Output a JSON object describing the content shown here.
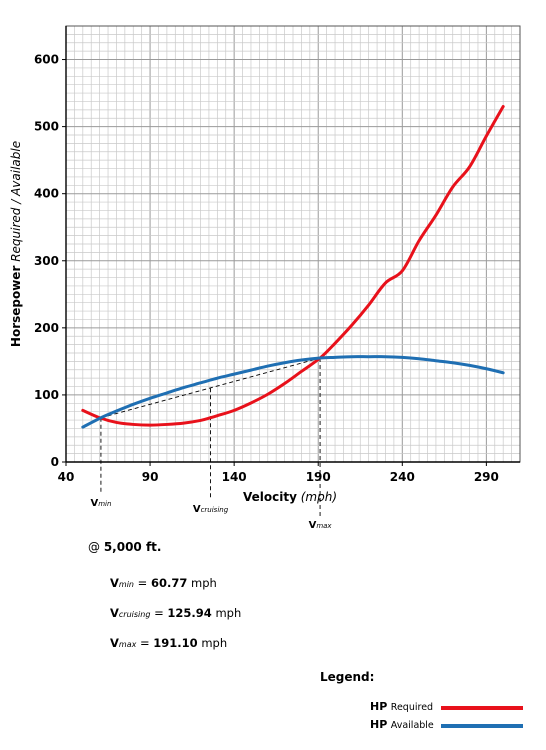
{
  "chart_data": {
    "type": "line",
    "title": "",
    "xlabel_main": "Velocity",
    "xlabel_unit": "(mph)",
    "ylabel_main": "Horsepower",
    "ylabel_sub": "Required / Available",
    "xlim": [
      40,
      310
    ],
    "ylim": [
      0,
      650
    ],
    "x_ticks": [
      40,
      90,
      140,
      190,
      240,
      290
    ],
    "y_ticks": [
      0,
      100,
      200,
      300,
      400,
      500,
      600
    ],
    "x_minor_step": 5,
    "y_minor_step": 12.5,
    "grid": true,
    "series": [
      {
        "name": "HP Required",
        "color": "#e8111b",
        "x": [
          50,
          60,
          70,
          80,
          90,
          100,
          110,
          120,
          125.94,
          130,
          140,
          150,
          160,
          170,
          180,
          191.1,
          200,
          210,
          220,
          230,
          240,
          250,
          260,
          270,
          280,
          290,
          300
        ],
        "y": [
          77,
          66,
          59,
          56,
          55,
          56,
          58,
          62,
          66,
          69,
          77,
          88,
          101,
          117,
          135,
          155,
          177,
          204,
          234,
          267,
          285,
          330,
          368,
          410,
          440,
          486,
          530
        ]
      },
      {
        "name": "HP Available",
        "color": "#1f6fb3",
        "x": [
          50,
          60.77,
          70,
          80,
          90,
          100,
          110,
          120,
          130,
          140,
          150,
          160,
          170,
          180,
          191.1,
          200,
          210,
          220,
          230,
          240,
          250,
          260,
          270,
          280,
          290,
          300
        ],
        "y": [
          52,
          66,
          76,
          86,
          95,
          103,
          111,
          118,
          125,
          131,
          137,
          143,
          148,
          152,
          155,
          156,
          157,
          157,
          157,
          156,
          154,
          151,
          148,
          144,
          139,
          133
        ]
      }
    ],
    "markers": [
      {
        "main": "V",
        "sub": "min",
        "x": 60.77,
        "y": 66
      },
      {
        "main": "V",
        "sub": "cruising",
        "x": 125.94,
        "y": 110
      },
      {
        "main": "V",
        "sub": "max",
        "x": 191.1,
        "y": 155
      }
    ],
    "tangent_line": {
      "from": [
        60.77,
        66
      ],
      "to": [
        191.1,
        155
      ]
    }
  },
  "altitude": {
    "prefix": "@",
    "value": "5,000 ft."
  },
  "results": [
    {
      "main": "V",
      "sub": "min",
      "equals": "=",
      "value": "60.77",
      "unit": "mph"
    },
    {
      "main": "V",
      "sub": "cruising",
      "equals": "=",
      "value": "125.94",
      "unit": "mph"
    },
    {
      "main": "V",
      "sub": "max",
      "equals": "=",
      "value": "191.10",
      "unit": "mph"
    }
  ],
  "legend": {
    "title": "Legend:",
    "items": [
      {
        "hp": "HP",
        "label": "Required",
        "color": "#e8111b"
      },
      {
        "hp": "HP",
        "label": "Available",
        "color": "#1f6fb3"
      }
    ]
  }
}
